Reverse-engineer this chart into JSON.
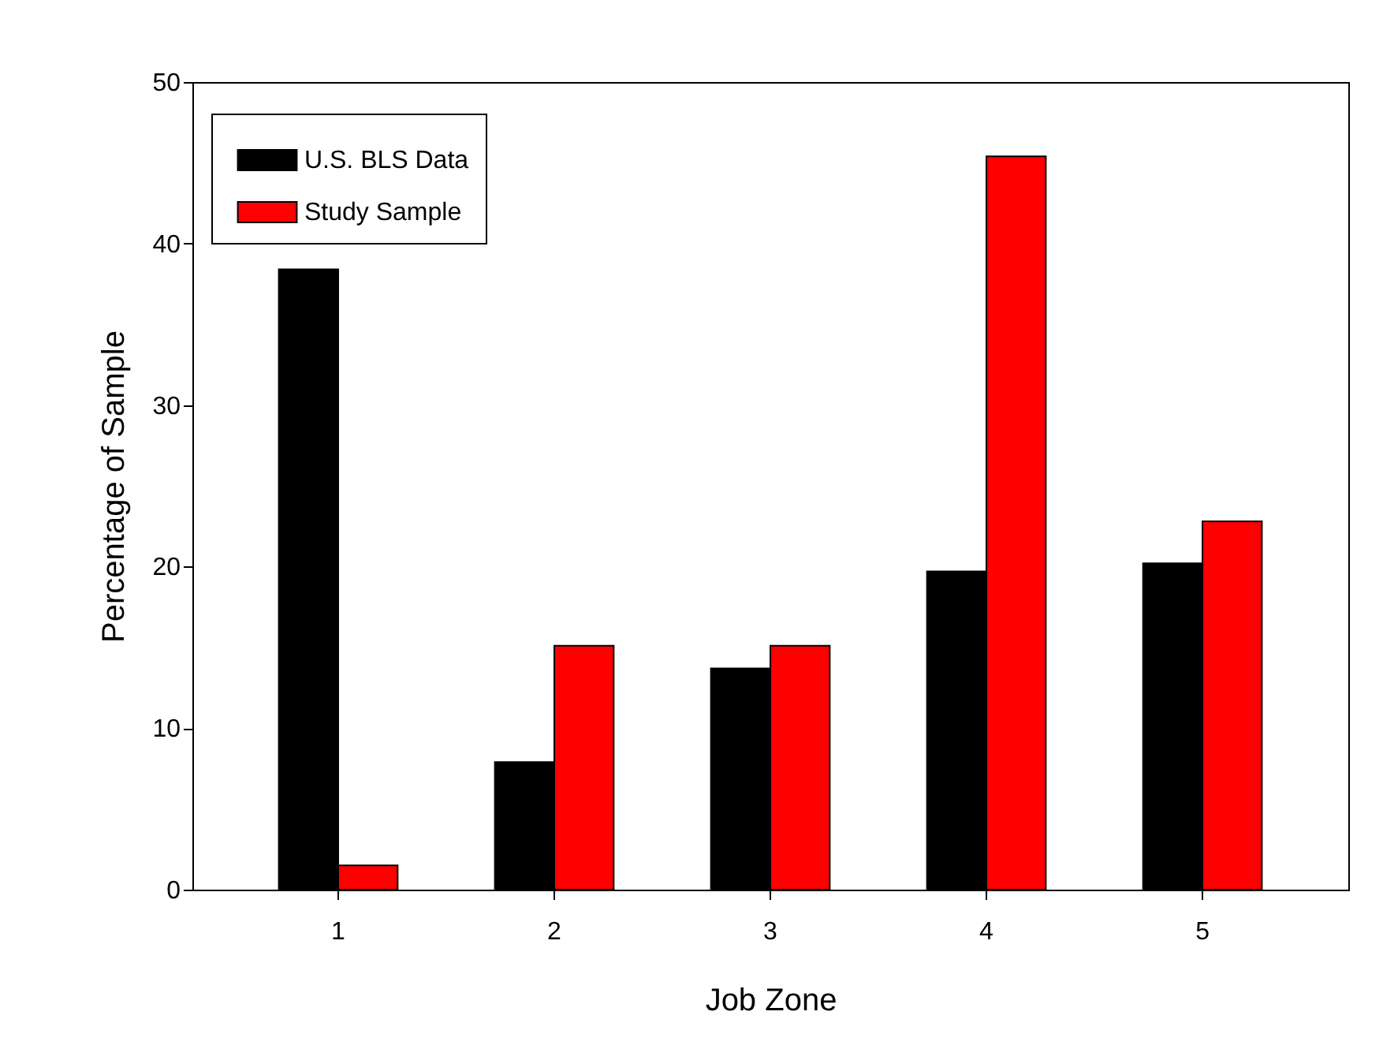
{
  "chart_data": {
    "type": "bar",
    "xlabel": "Job Zone",
    "ylabel": "Percentage of Sample",
    "categories": [
      "1",
      "2",
      "3",
      "4",
      "5"
    ],
    "series": [
      {
        "name": "U.S. BLS Data",
        "color": "#000000",
        "values": [
          38.4,
          7.9,
          13.7,
          19.7,
          20.2
        ]
      },
      {
        "name": "Study Sample",
        "color": "#ff0000",
        "values": [
          1.5,
          15.1,
          15.1,
          45.4,
          22.8
        ]
      }
    ],
    "ylim": [
      0,
      50
    ],
    "yticks": [
      0,
      10,
      20,
      30,
      40,
      50
    ],
    "grid": false,
    "legend": "top left"
  }
}
